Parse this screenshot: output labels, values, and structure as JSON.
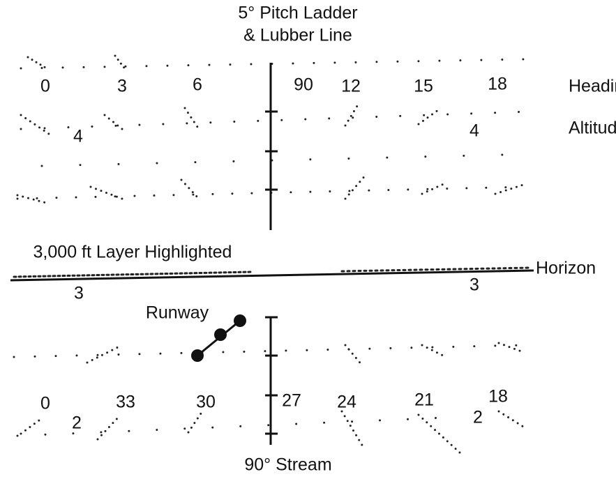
{
  "title": [
    "5° Pitch Ladder",
    "& Lubber Line"
  ],
  "upper_headings": [
    "0",
    "3",
    "6",
    "90",
    "12",
    "15",
    "18"
  ],
  "upper_altitudes": [
    "4",
    "4"
  ],
  "horizon_altitudes": [
    "3",
    "3"
  ],
  "lower_headings": [
    "0",
    "33",
    "30",
    "27",
    "24",
    "21",
    "18"
  ],
  "lower_altitudes": [
    "2",
    "2"
  ],
  "labels": {
    "headings": "Headings",
    "altitudes": "Altitudes",
    "layer": "3,000 ft Layer Highlighted",
    "horizon": "Horizon",
    "runway": "Runway",
    "stream": "90° Stream"
  }
}
